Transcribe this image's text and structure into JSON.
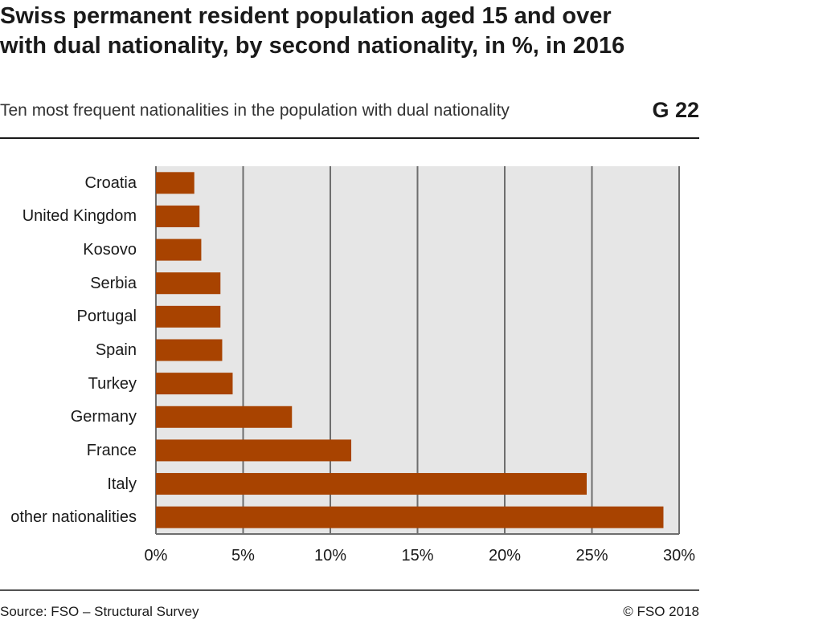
{
  "chart_data": {
    "type": "bar",
    "title": "Swiss permanent resident population aged 15 and over with dual nationality, by second nationality, in %, in 2016",
    "subtitle": "Ten most frequent nationalities in the population with dual nationality",
    "figure_id": "G 22",
    "categories": [
      "Croatia",
      "United Kingdom",
      "Kosovo",
      "Serbia",
      "Portugal",
      "Spain",
      "Turkey",
      "Germany",
      "France",
      "Italy",
      "other nationalities"
    ],
    "values": [
      2.2,
      2.5,
      2.6,
      3.7,
      3.7,
      3.8,
      4.4,
      7.8,
      11.2,
      24.7,
      29.1
    ],
    "color": "#a84300",
    "xlim": [
      0,
      30
    ],
    "xticks": [
      {
        "value": 0,
        "label": "0%"
      },
      {
        "value": 5,
        "label": "5%"
      },
      {
        "value": 10,
        "label": "10%"
      },
      {
        "value": 15,
        "label": "15%"
      },
      {
        "value": 20,
        "label": "20%"
      },
      {
        "value": 25,
        "label": "25%"
      },
      {
        "value": 30,
        "label": "30%"
      }
    ],
    "grid": true,
    "source": "Source: FSO – Structural Survey",
    "copyright": "© FSO 2018"
  }
}
